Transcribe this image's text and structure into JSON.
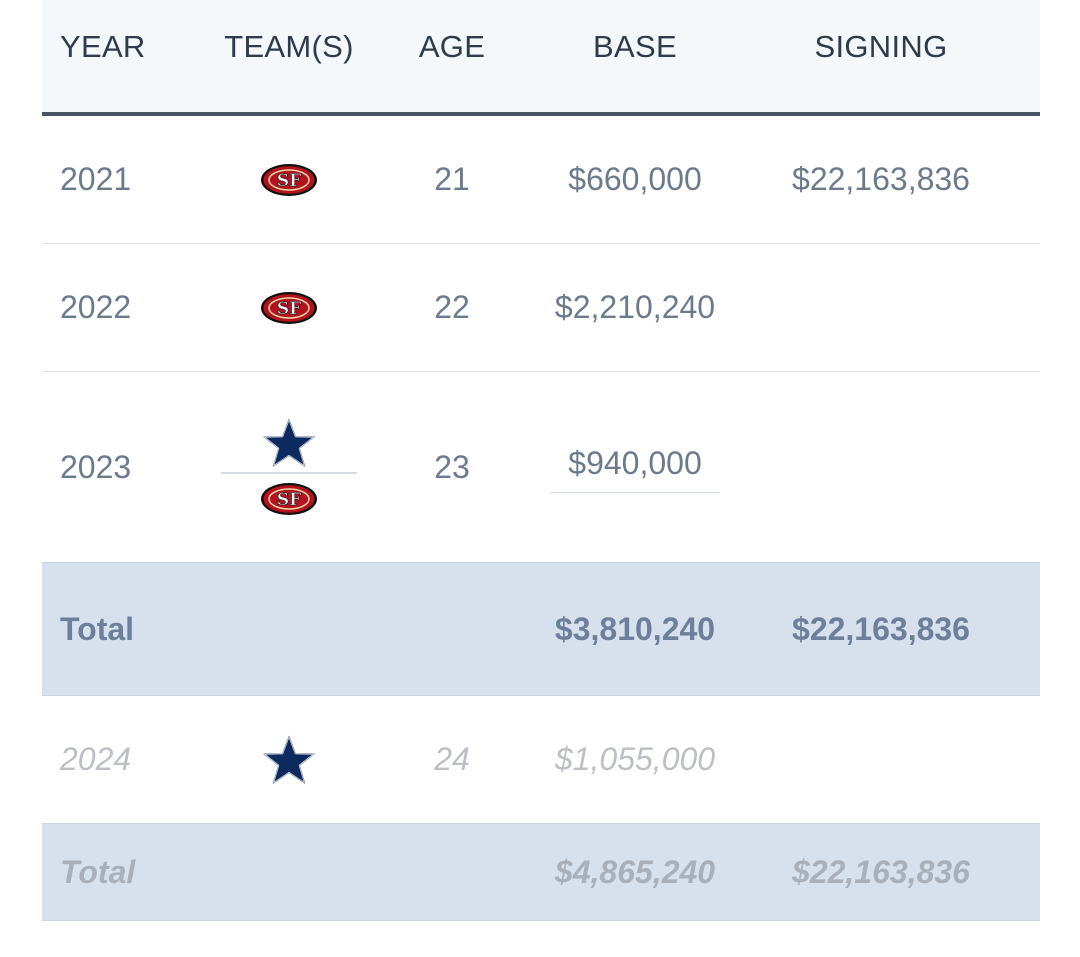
{
  "header": {
    "year": "YEAR",
    "teams": "TEAM(S)",
    "age": "AGE",
    "base": "BASE",
    "signing": "SIGNING"
  },
  "rows": [
    {
      "year": "2021",
      "teams": [
        "49ers-logo-icon"
      ],
      "age": "21",
      "base": "$660,000",
      "signing": "$22,163,836"
    },
    {
      "year": "2022",
      "teams": [
        "49ers-logo-icon"
      ],
      "age": "22",
      "base": "$2,210,240",
      "signing": ""
    },
    {
      "year": "2023",
      "teams": [
        "cowboys-star-icon",
        "49ers-logo-icon"
      ],
      "age": "23",
      "base": "$940,000",
      "signing": ""
    }
  ],
  "total": {
    "label": "Total",
    "base": "$3,810,240",
    "signing": "$22,163,836"
  },
  "future_rows": [
    {
      "year": "2024",
      "teams": [
        "cowboys-star-icon"
      ],
      "age": "24",
      "base": "$1,055,000",
      "signing": ""
    }
  ],
  "future_total": {
    "label": "Total",
    "base": "$4,865,240",
    "signing": "$22,163,836"
  },
  "colors": {
    "niners_red": "#b3121e",
    "cowboys_navy": "#0c2a5e"
  }
}
